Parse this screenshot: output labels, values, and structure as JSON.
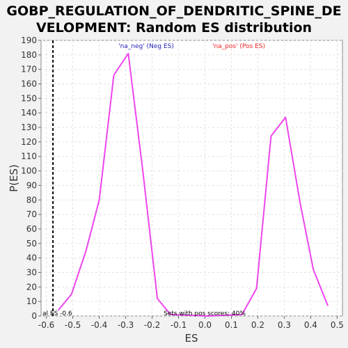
{
  "chart_data": {
    "type": "line",
    "title_lines": [
      "GOBP_REGULATION_OF_DENDRITIC_SPINE_DE",
      "VELOPMENT: Random ES distribution"
    ],
    "xlabel": "ES",
    "ylabel": "P(ES)",
    "xlim": [
      -0.62,
      0.52
    ],
    "ylim": [
      0,
      190
    ],
    "x_ticks": [
      -0.6,
      -0.5,
      -0.4,
      -0.3,
      -0.2,
      -0.1,
      0.0,
      0.1,
      0.2,
      0.3,
      0.4,
      0.5
    ],
    "x_tick_labels": [
      "-0.6",
      "-0.5",
      "-0.4",
      "-0.3",
      "-0.2",
      "-0.1",
      "0.0",
      "0.1",
      "0.2",
      "0.3",
      "0.4",
      "0.5"
    ],
    "y_ticks": [
      0,
      10,
      20,
      30,
      40,
      50,
      60,
      70,
      80,
      90,
      100,
      110,
      120,
      130,
      140,
      150,
      160,
      170,
      180,
      190
    ],
    "y_tick_labels": [
      "0",
      "10",
      "20",
      "30",
      "40",
      "50",
      "60",
      "70",
      "80",
      "90",
      "100",
      "110",
      "120",
      "130",
      "140",
      "150",
      "160",
      "170",
      "180",
      "190"
    ],
    "grid": true,
    "series": [
      {
        "color": "#ee44ee",
        "x": [
          -0.555,
          -0.505,
          -0.45,
          -0.4,
          -0.345,
          -0.29,
          -0.235,
          -0.18,
          -0.13,
          0.01,
          0.14,
          0.195,
          0.25,
          0.305,
          0.36,
          0.41,
          0.465
        ],
        "y": [
          4,
          15,
          45,
          80,
          166,
          181,
          100,
          12,
          1,
          0,
          1,
          19,
          124,
          137,
          78,
          32,
          7
        ]
      }
    ],
    "marker_line": {
      "x": -0.575,
      "color": "#000000"
    },
    "legend": [
      {
        "text": "'na_neg' (Neg ES)",
        "color": "#2222bb"
      },
      {
        "text": "'na_pos' (Pos ES)",
        "color": "#ee2222"
      }
    ],
    "annotations": {
      "left": "al ES -0.6",
      "center": "Sets with pos scores: 40%"
    }
  }
}
